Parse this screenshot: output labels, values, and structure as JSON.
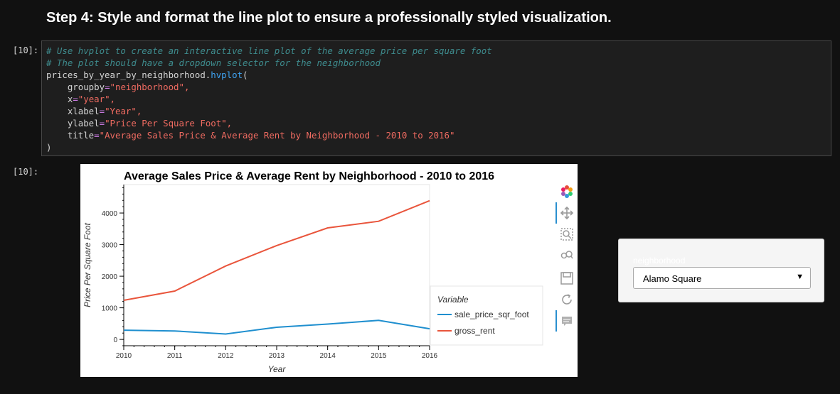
{
  "heading": "Step 4: Style and format the line plot to ensure a professionally styled visualization.",
  "input_prompt": "[10]:",
  "output_prompt": "[10]:",
  "code": {
    "comment1": "# Use hvplot to create an interactive line plot of the average price per square foot",
    "comment2": "# The plot should have a dropdown selector for the neighborhood",
    "obj": "prices_by_year_by_neighborhood.",
    "method": "hvplot",
    "open_paren": "(",
    "args": [
      {
        "key": "groupby",
        "value": "\"neighborhood\","
      },
      {
        "key": "x",
        "value": "\"year\","
      },
      {
        "key": "xlabel",
        "value": "\"Year\","
      },
      {
        "key": "ylabel",
        "value": "\"Price Per Square Foot\","
      },
      {
        "key": "title",
        "value": "\"Average Sales Price & Average Rent by Neighborhood - 2010 to 2016\""
      }
    ],
    "eq": "=",
    "close_paren": ")"
  },
  "chart_data": {
    "type": "line",
    "title": "Average Sales Price & Average Rent by Neighborhood - 2010 to 2016",
    "xlabel": "Year",
    "ylabel": "Price Per Square Foot",
    "x": [
      2010,
      2011,
      2012,
      2013,
      2014,
      2015,
      2016
    ],
    "xlim": [
      2010,
      2016
    ],
    "ylim": [
      -200,
      4900
    ],
    "xticks": [
      "2010",
      "2011",
      "2012",
      "2013",
      "2014",
      "2015",
      "2016"
    ],
    "yticks": [
      0,
      1000,
      2000,
      3000,
      4000
    ],
    "ytick_labels": [
      "0",
      "1000",
      "2000",
      "3000",
      "4000"
    ],
    "series": [
      {
        "name": "sale_price_sqr_foot",
        "color": "#1f8fcf",
        "values": [
          291,
          267,
          170,
          385,
          485,
          603,
          336
        ]
      },
      {
        "name": "gross_rent",
        "color": "#e9553c",
        "values": [
          1239,
          1530,
          2324,
          2971,
          3529,
          3739,
          4390
        ]
      }
    ],
    "legend_title": "Variable",
    "legend_position": "right"
  },
  "widget": {
    "label": "neighborhood",
    "selected": "Alamo Square",
    "arrow": "▼"
  },
  "toolbar": [
    "bokeh-logo-icon",
    "pan-icon",
    "box-zoom-icon",
    "wheel-zoom-icon",
    "save-icon",
    "reset-icon",
    "hover-icon"
  ]
}
